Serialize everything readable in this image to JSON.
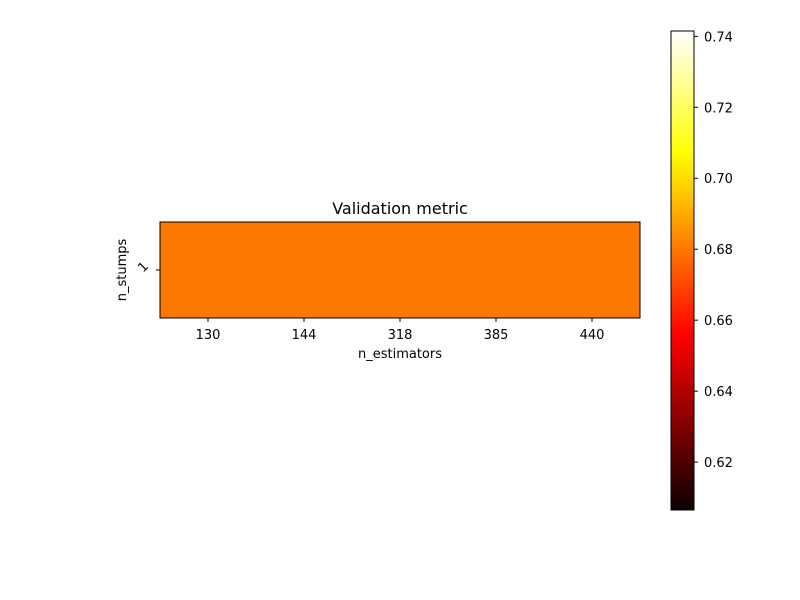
{
  "chart_data": {
    "type": "heatmap",
    "title": "Validation metric",
    "xlabel": "n_estimators",
    "ylabel": "n_stumps",
    "x_categories": [
      "130",
      "144",
      "318",
      "385",
      "440"
    ],
    "y_categories": [
      "1"
    ],
    "values": [
      [
        0.68,
        0.68,
        0.68,
        0.68,
        0.68
      ]
    ],
    "colormap": "hot",
    "colorbar": {
      "vmin": 0.6065,
      "vmax": 0.7415,
      "ticks": [
        0.62,
        0.64,
        0.66,
        0.68,
        0.7,
        0.72,
        0.74
      ],
      "tick_labels": [
        "0.62",
        "0.64",
        "0.66",
        "0.68",
        "0.70",
        "0.72",
        "0.74"
      ]
    },
    "grid": false
  }
}
